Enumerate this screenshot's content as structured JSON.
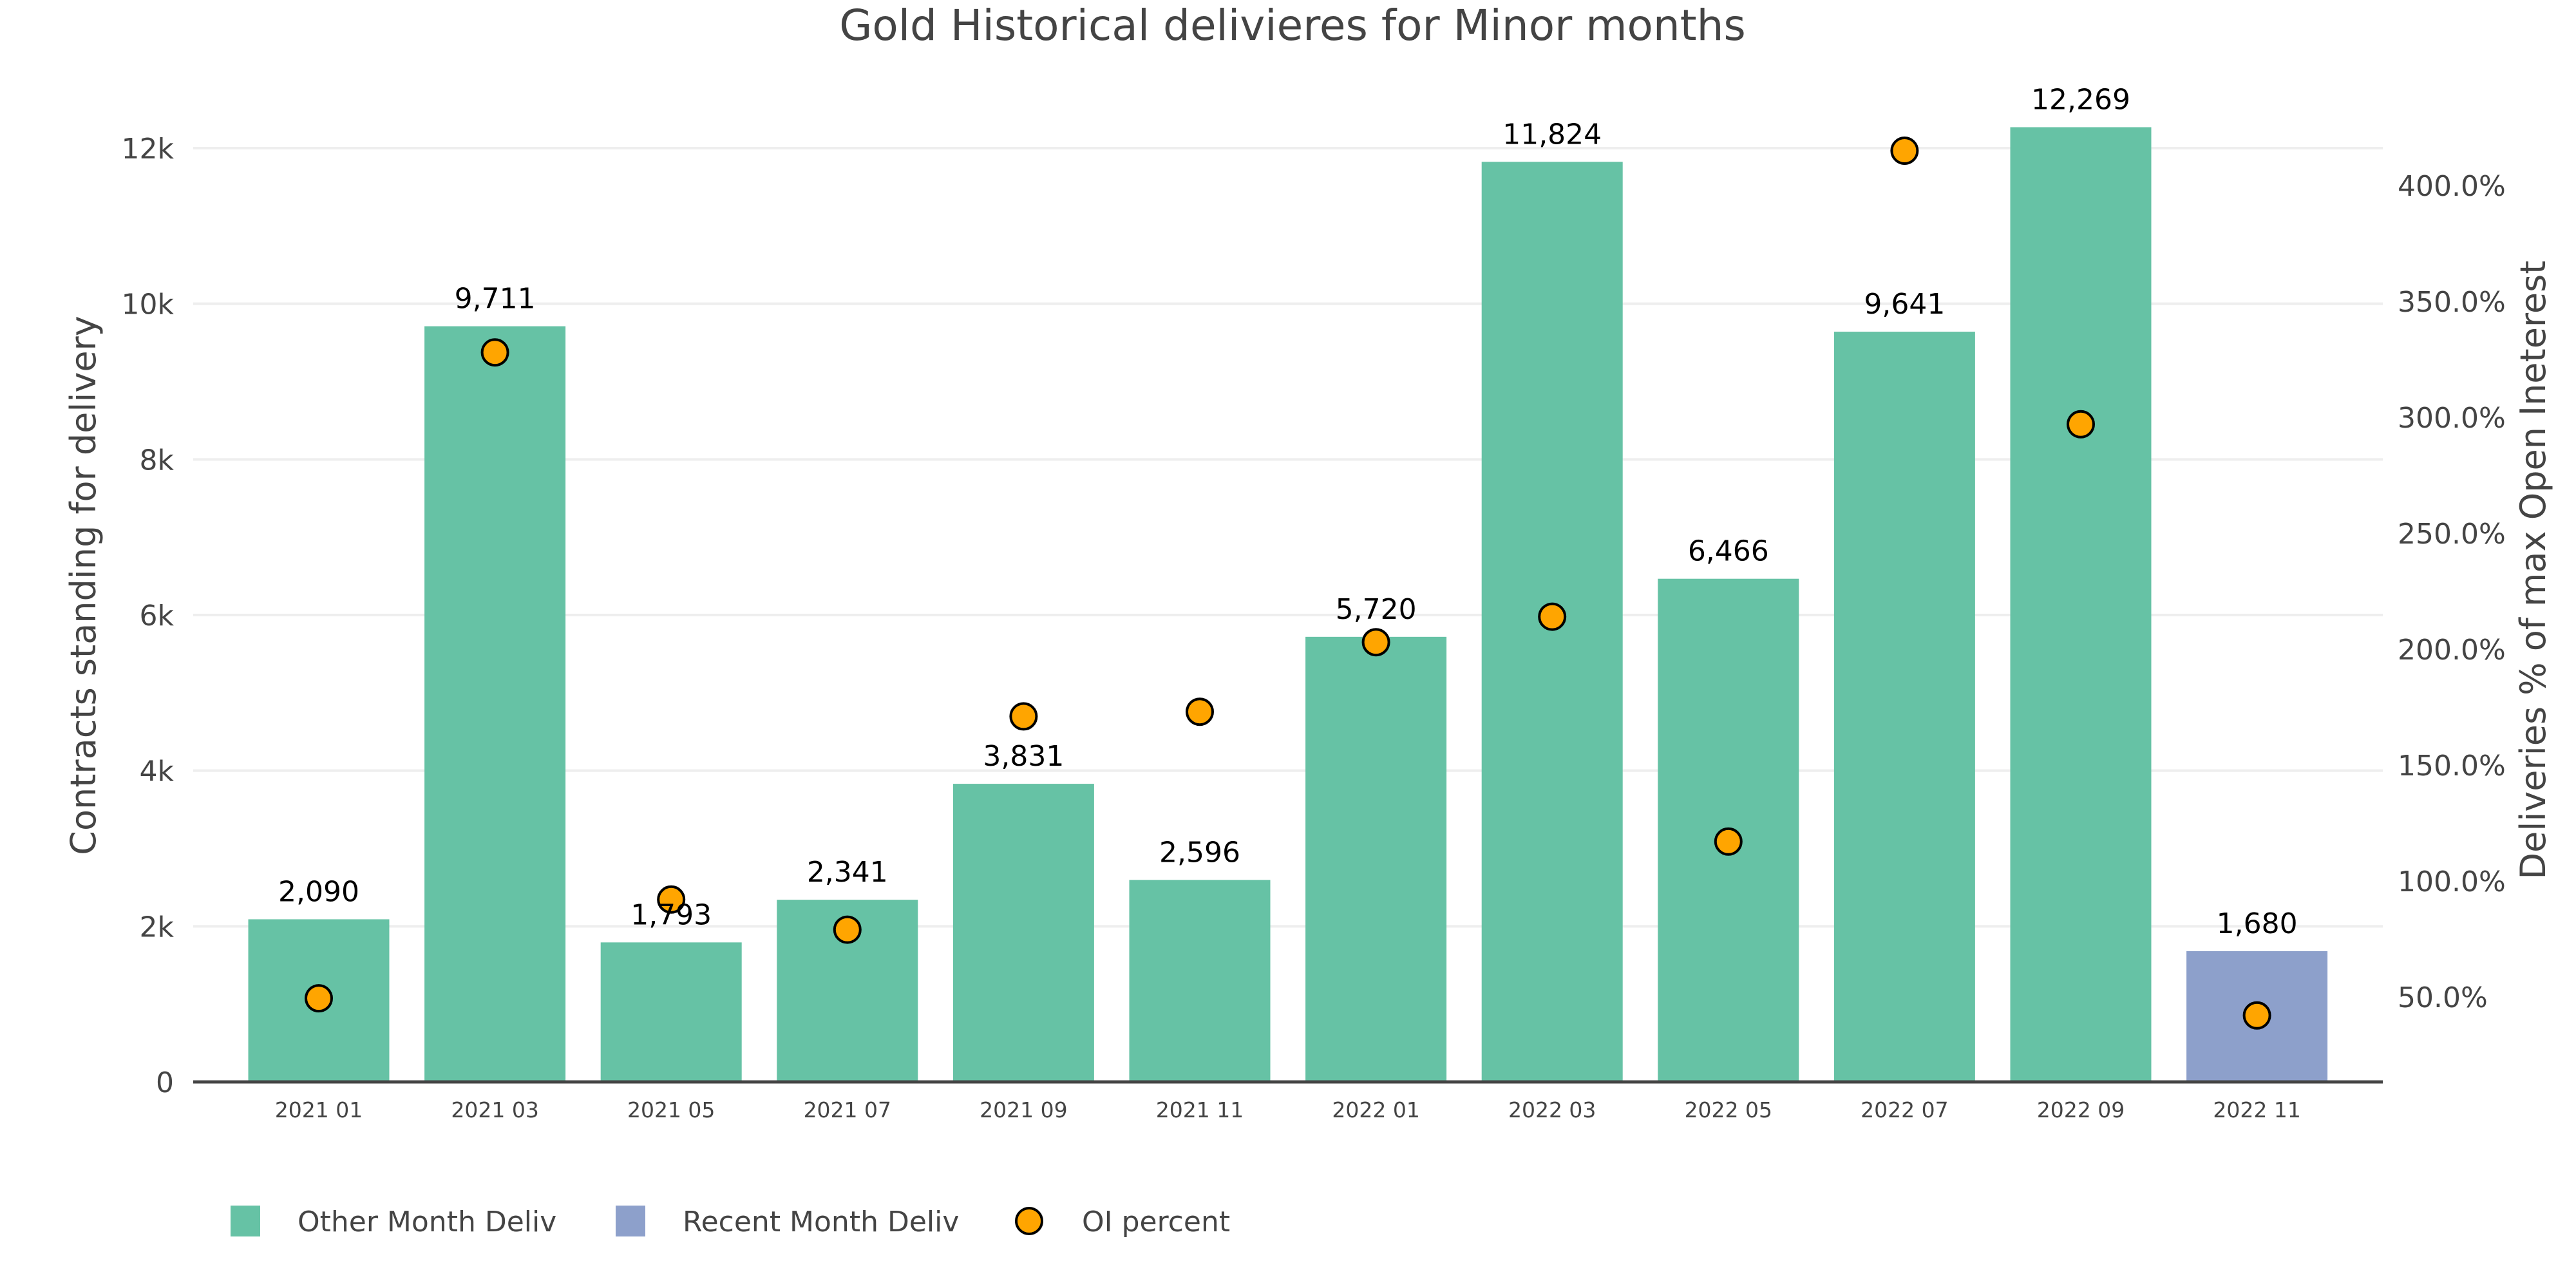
{
  "chart_data": {
    "type": "bar",
    "title": "Gold Historical delivieres for Minor months",
    "xlabel": "",
    "ylabel": "Contracts standing for delivery",
    "y2label": "Deliveries % of max Open Ineterest",
    "categories": [
      "2021 01",
      "2021 03",
      "2021 05",
      "2021 07",
      "2021 09",
      "2021 11",
      "2022 01",
      "2022 03",
      "2022 05",
      "2022 07",
      "2022 09",
      "2022 11"
    ],
    "series": [
      {
        "name": "Other Month Deliv",
        "type": "bar",
        "axis": "left",
        "color": "#66c2a5",
        "values": [
          2090,
          9711,
          1793,
          2341,
          3831,
          2596,
          5720,
          11824,
          6466,
          9641,
          12269,
          null
        ],
        "labels": [
          "2,090",
          "9,711",
          "1,793",
          "2,341",
          "3,831",
          "2,596",
          "5,720",
          "11,824",
          "6,466",
          "9,641",
          "12,269",
          null
        ]
      },
      {
        "name": "Recent Month Deliv",
        "type": "bar",
        "axis": "left",
        "color": "#8da0cb",
        "values": [
          null,
          null,
          null,
          null,
          null,
          null,
          null,
          null,
          null,
          null,
          null,
          1680
        ],
        "labels": [
          null,
          null,
          null,
          null,
          null,
          null,
          null,
          null,
          null,
          null,
          null,
          "1,680"
        ]
      },
      {
        "name": "OI percent",
        "type": "scatter",
        "axis": "right",
        "color": "#ffa500",
        "outline": "#000000",
        "values": [
          49.4,
          328,
          92,
          79,
          171,
          173,
          203,
          214,
          117,
          415,
          297,
          42
        ]
      }
    ],
    "ylim": [
      0,
      12000
    ],
    "y2lim": [
      0,
      430
    ],
    "yticks": [
      {
        "value": 0,
        "label": "0"
      },
      {
        "value": 2000,
        "label": "2k"
      },
      {
        "value": 4000,
        "label": "4k"
      },
      {
        "value": 6000,
        "label": "6k"
      },
      {
        "value": 8000,
        "label": "8k"
      },
      {
        "value": 10000,
        "label": "10k"
      },
      {
        "value": 12000,
        "label": "12k"
      }
    ],
    "y2ticks": [
      {
        "value": 50,
        "label": "50.0%"
      },
      {
        "value": 100,
        "label": "100.0%"
      },
      {
        "value": 150,
        "label": "150.0%"
      },
      {
        "value": 200,
        "label": "200.0%"
      },
      {
        "value": 250,
        "label": "250.0%"
      },
      {
        "value": 300,
        "label": "300.0%"
      },
      {
        "value": 350,
        "label": "350.0%"
      },
      {
        "value": 400,
        "label": "400.0%"
      }
    ],
    "grid": true,
    "legend": {
      "position": "bottom-left",
      "orientation": "horizontal",
      "items": [
        {
          "label": "Other Month Deliv",
          "symbol": "square",
          "color": "#66c2a5"
        },
        {
          "label": "Recent Month Deliv",
          "symbol": "square",
          "color": "#8da0cb"
        },
        {
          "label": "OI percent",
          "symbol": "circle",
          "color": "#ffa500"
        }
      ]
    }
  }
}
